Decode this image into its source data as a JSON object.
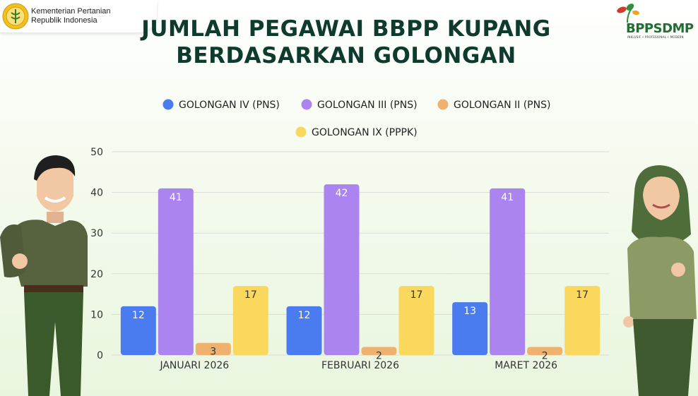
{
  "ministry": {
    "line1": "Kementerian Pertanian",
    "line2": "Republik Indonesia"
  },
  "brand": {
    "name": "BPPSDMP",
    "tagline": "INKLUSIF • PROFESIONAL • MODERN"
  },
  "title": {
    "line1": "JUMLAH PEGAWAI BBPP KUPANG",
    "line2": "BERDASARKAN GOLONGAN"
  },
  "colors": {
    "series": [
      "#4a7cf0",
      "#ab84f0",
      "#efb26e",
      "#fad85e"
    ],
    "title": "#0e3b2d",
    "gridline": "#d9dcd6"
  },
  "chart_data": {
    "type": "bar",
    "categories": [
      "JANUARI 2026",
      "FEBRUARI 2026",
      "MARET 2026"
    ],
    "series": [
      {
        "name": "GOLONGAN IV (PNS)",
        "values": [
          12,
          12,
          13
        ]
      },
      {
        "name": "GOLONGAN III (PNS)",
        "values": [
          41,
          42,
          41
        ]
      },
      {
        "name": "GOLONGAN II (PNS)",
        "values": [
          3,
          2,
          2
        ]
      },
      {
        "name": "GOLONGAN IX (PPPK)",
        "values": [
          17,
          17,
          17
        ]
      }
    ],
    "ylim": [
      0,
      50
    ],
    "yticks": [
      0,
      10,
      20,
      30,
      40,
      50
    ],
    "grid": true,
    "legend_position": "top"
  }
}
